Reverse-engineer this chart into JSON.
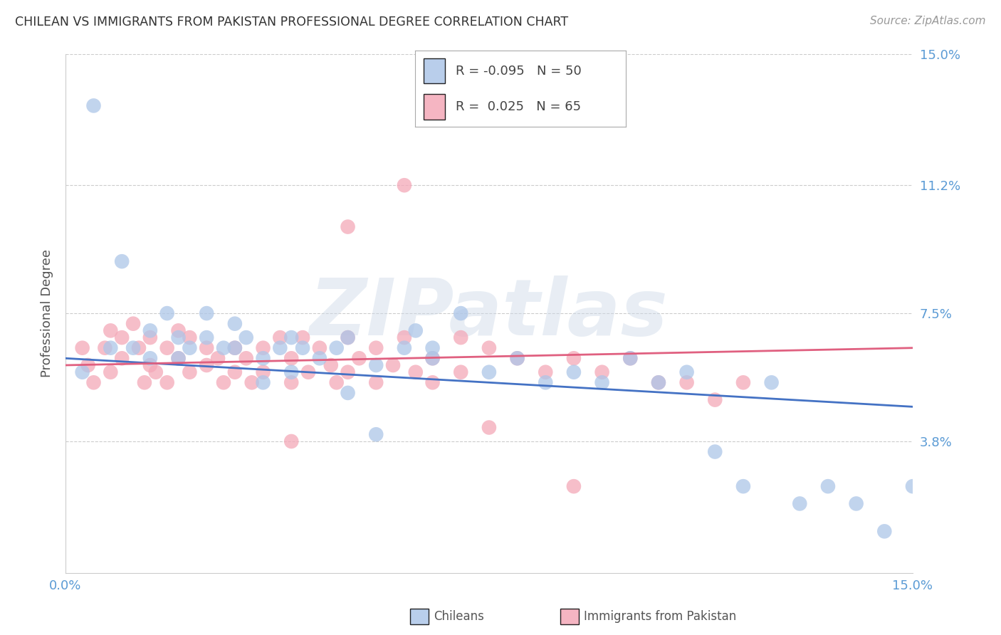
{
  "title": "CHILEAN VS IMMIGRANTS FROM PAKISTAN PROFESSIONAL DEGREE CORRELATION CHART",
  "source": "Source: ZipAtlas.com",
  "ylabel": "Professional Degree",
  "watermark": "ZIPatlas",
  "xlim": [
    0.0,
    0.15
  ],
  "ylim": [
    0.0,
    0.15
  ],
  "ytick_vals_right": [
    0.15,
    0.112,
    0.075,
    0.038
  ],
  "ytick_labels_right": [
    "15.0%",
    "11.2%",
    "7.5%",
    "3.8%"
  ],
  "series1_label": "Chileans",
  "series1_color": "#adc6e8",
  "series1_line_color": "#4472c4",
  "series1_R": -0.095,
  "series1_N": 50,
  "series2_label": "Immigrants from Pakistan",
  "series2_color": "#f4a8b8",
  "series2_line_color": "#e06080",
  "series2_R": 0.025,
  "series2_N": 65,
  "blue_x": [
    0.003,
    0.005,
    0.008,
    0.01,
    0.012,
    0.015,
    0.015,
    0.018,
    0.02,
    0.02,
    0.022,
    0.025,
    0.025,
    0.028,
    0.03,
    0.03,
    0.032,
    0.035,
    0.035,
    0.038,
    0.04,
    0.04,
    0.042,
    0.045,
    0.048,
    0.05,
    0.05,
    0.055,
    0.055,
    0.06,
    0.062,
    0.065,
    0.065,
    0.07,
    0.075,
    0.08,
    0.085,
    0.09,
    0.095,
    0.1,
    0.105,
    0.11,
    0.115,
    0.12,
    0.125,
    0.13,
    0.135,
    0.14,
    0.145,
    0.15
  ],
  "blue_y": [
    0.058,
    0.135,
    0.065,
    0.09,
    0.065,
    0.07,
    0.062,
    0.075,
    0.068,
    0.062,
    0.065,
    0.075,
    0.068,
    0.065,
    0.072,
    0.065,
    0.068,
    0.062,
    0.055,
    0.065,
    0.068,
    0.058,
    0.065,
    0.062,
    0.065,
    0.068,
    0.052,
    0.06,
    0.04,
    0.065,
    0.07,
    0.065,
    0.062,
    0.075,
    0.058,
    0.062,
    0.055,
    0.058,
    0.055,
    0.062,
    0.055,
    0.058,
    0.035,
    0.025,
    0.055,
    0.02,
    0.025,
    0.02,
    0.012,
    0.025
  ],
  "pink_x": [
    0.003,
    0.004,
    0.005,
    0.007,
    0.008,
    0.008,
    0.01,
    0.01,
    0.012,
    0.013,
    0.014,
    0.015,
    0.015,
    0.016,
    0.018,
    0.018,
    0.02,
    0.02,
    0.022,
    0.022,
    0.025,
    0.025,
    0.027,
    0.028,
    0.03,
    0.03,
    0.032,
    0.033,
    0.035,
    0.035,
    0.038,
    0.04,
    0.04,
    0.042,
    0.043,
    0.045,
    0.047,
    0.048,
    0.05,
    0.05,
    0.052,
    0.055,
    0.055,
    0.058,
    0.06,
    0.062,
    0.065,
    0.065,
    0.07,
    0.07,
    0.075,
    0.08,
    0.085,
    0.09,
    0.095,
    0.1,
    0.105,
    0.11,
    0.115,
    0.12,
    0.09,
    0.075,
    0.06,
    0.05,
    0.04
  ],
  "pink_y": [
    0.065,
    0.06,
    0.055,
    0.065,
    0.07,
    0.058,
    0.068,
    0.062,
    0.072,
    0.065,
    0.055,
    0.068,
    0.06,
    0.058,
    0.065,
    0.055,
    0.07,
    0.062,
    0.068,
    0.058,
    0.065,
    0.06,
    0.062,
    0.055,
    0.065,
    0.058,
    0.062,
    0.055,
    0.065,
    0.058,
    0.068,
    0.062,
    0.055,
    0.068,
    0.058,
    0.065,
    0.06,
    0.055,
    0.068,
    0.058,
    0.062,
    0.065,
    0.055,
    0.06,
    0.068,
    0.058,
    0.062,
    0.055,
    0.068,
    0.058,
    0.065,
    0.062,
    0.058,
    0.062,
    0.058,
    0.062,
    0.055,
    0.055,
    0.05,
    0.055,
    0.025,
    0.042,
    0.112,
    0.1,
    0.038
  ],
  "background_color": "#ffffff",
  "grid_color": "#cccccc",
  "title_color": "#333333",
  "axis_tick_color": "#5b9bd5"
}
